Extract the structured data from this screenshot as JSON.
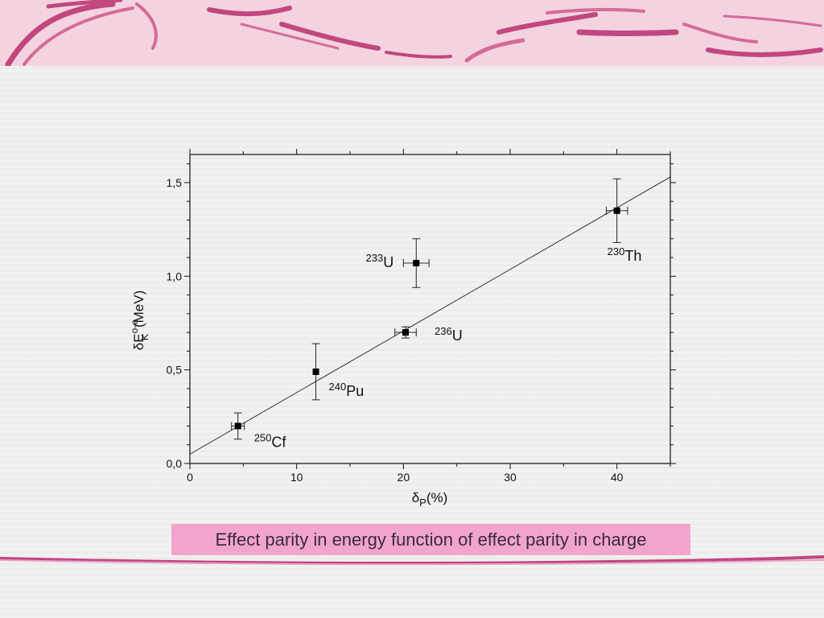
{
  "caption": "Effect parity in energy function of effect parity in charge",
  "colors": {
    "accent": "#f2a5cb",
    "banner": "#f3d3e0",
    "stroke": "#c2477e"
  },
  "chart_data": {
    "type": "scatter",
    "xlabel": {
      "main": "δ",
      "sub": "P",
      "tail": "(%)"
    },
    "ylabel": {
      "main": "δE",
      "sup": "o-e",
      "sub": "K",
      "tail": "(MeV)"
    },
    "xlim": [
      0,
      45
    ],
    "ylim": [
      0,
      1.65
    ],
    "xticks": [
      0,
      10,
      20,
      30,
      40
    ],
    "xtick_labels": [
      "0",
      "10",
      "20",
      "30",
      "40"
    ],
    "yticks": [
      0,
      0.5,
      1.0,
      1.5
    ],
    "ytick_labels": [
      "0,0",
      "0,5",
      "1,0",
      "1,5"
    ],
    "grid": false,
    "points": [
      {
        "x": 4.5,
        "y": 0.2,
        "xerr": 0.6,
        "yerr": 0.07,
        "label_sup": "250",
        "label": "Cf"
      },
      {
        "x": 11.8,
        "y": 0.49,
        "xerr": 0.0,
        "yerr": 0.15,
        "label_sup": "240",
        "label": "Pu"
      },
      {
        "x": 20.2,
        "y": 0.7,
        "xerr": 1.0,
        "yerr": 0.03,
        "label_sup": "236",
        "label": "U"
      },
      {
        "x": 21.2,
        "y": 1.07,
        "xerr": 1.2,
        "yerr": 0.13,
        "label_sup": "233",
        "label": "U"
      },
      {
        "x": 40.0,
        "y": 1.35,
        "xerr": 1.0,
        "yerr": 0.17,
        "label_sup": "230",
        "label": "Th"
      }
    ],
    "fit_line": {
      "x": [
        0,
        45
      ],
      "y": [
        0.05,
        1.53
      ]
    }
  }
}
